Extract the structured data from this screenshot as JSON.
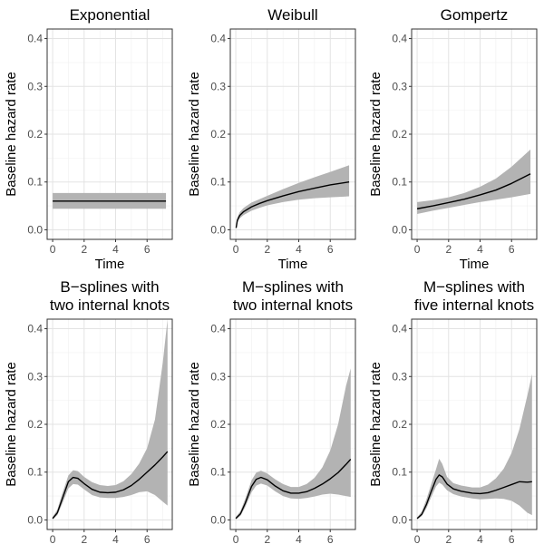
{
  "chart_data": {
    "type": "line",
    "layout": "2x3 facet grid",
    "shared": {
      "xlabel": "Time",
      "ylabel": "Baseline hazard rate",
      "xlim": [
        -0.35,
        7.6
      ],
      "ylim": [
        -0.02,
        0.42
      ],
      "xticks": [
        0,
        2,
        4,
        6
      ],
      "xtick_labels": [
        "0",
        "2",
        "4",
        "6"
      ],
      "yticks": [
        0.0,
        0.1,
        0.2,
        0.3,
        0.4
      ],
      "ytick_labels": [
        "0.0",
        "0.1",
        "0.2",
        "0.3",
        "0.4"
      ],
      "grid": true
    },
    "panels": [
      {
        "title_lines": [
          "Exponential"
        ],
        "x": [
          0,
          1,
          2,
          3,
          4,
          5,
          6,
          7.2
        ],
        "y": [
          0.06,
          0.06,
          0.06,
          0.06,
          0.06,
          0.06,
          0.06,
          0.06
        ],
        "lower": [
          0.044,
          0.044,
          0.044,
          0.044,
          0.044,
          0.044,
          0.044,
          0.044
        ],
        "upper": [
          0.077,
          0.077,
          0.077,
          0.077,
          0.077,
          0.077,
          0.077,
          0.077
        ]
      },
      {
        "title_lines": [
          "Weibull"
        ],
        "x": [
          0.02,
          0.1,
          0.25,
          0.5,
          1,
          1.5,
          2,
          3,
          4,
          5,
          6,
          7.2
        ],
        "y": [
          0.004,
          0.02,
          0.03,
          0.038,
          0.048,
          0.055,
          0.061,
          0.071,
          0.08,
          0.087,
          0.094,
          0.1
        ],
        "lower": [
          0.002,
          0.015,
          0.024,
          0.031,
          0.04,
          0.046,
          0.051,
          0.058,
          0.063,
          0.066,
          0.068,
          0.07
        ],
        "upper": [
          0.006,
          0.026,
          0.037,
          0.046,
          0.057,
          0.064,
          0.071,
          0.085,
          0.098,
          0.11,
          0.121,
          0.135
        ]
      },
      {
        "title_lines": [
          "Gompertz"
        ],
        "x": [
          0,
          1,
          2,
          3,
          4,
          5,
          6,
          7.2
        ],
        "y": [
          0.044,
          0.05,
          0.057,
          0.064,
          0.073,
          0.083,
          0.097,
          0.117
        ],
        "lower": [
          0.033,
          0.04,
          0.046,
          0.052,
          0.058,
          0.063,
          0.068,
          0.075
        ],
        "upper": [
          0.058,
          0.062,
          0.068,
          0.077,
          0.09,
          0.107,
          0.132,
          0.168
        ]
      },
      {
        "title_lines": [
          "B−splines with",
          "two internal knots"
        ],
        "x": [
          0,
          0.3,
          0.6,
          1.0,
          1.3,
          1.6,
          2.0,
          2.5,
          3.0,
          3.5,
          4.0,
          4.5,
          5.0,
          5.5,
          6.0,
          6.5,
          7.0,
          7.3
        ],
        "y": [
          0.003,
          0.015,
          0.043,
          0.08,
          0.089,
          0.087,
          0.076,
          0.064,
          0.058,
          0.057,
          0.058,
          0.063,
          0.072,
          0.085,
          0.1,
          0.115,
          0.132,
          0.143
        ],
        "lower": [
          0.001,
          0.01,
          0.033,
          0.066,
          0.075,
          0.074,
          0.064,
          0.052,
          0.047,
          0.046,
          0.046,
          0.048,
          0.052,
          0.058,
          0.06,
          0.052,
          0.038,
          0.03
        ],
        "upper": [
          0.006,
          0.022,
          0.054,
          0.093,
          0.104,
          0.102,
          0.09,
          0.079,
          0.073,
          0.071,
          0.073,
          0.081,
          0.096,
          0.118,
          0.15,
          0.21,
          0.33,
          0.42
        ]
      },
      {
        "title_lines": [
          "M−splines with",
          "two internal knots"
        ],
        "x": [
          0,
          0.3,
          0.6,
          1.0,
          1.3,
          1.6,
          2.0,
          2.5,
          3.0,
          3.5,
          4.0,
          4.5,
          5.0,
          5.5,
          6.0,
          6.5,
          7.0,
          7.3
        ],
        "y": [
          0.003,
          0.013,
          0.035,
          0.07,
          0.085,
          0.089,
          0.084,
          0.071,
          0.061,
          0.056,
          0.056,
          0.059,
          0.066,
          0.075,
          0.086,
          0.099,
          0.116,
          0.127
        ],
        "lower": [
          0.001,
          0.009,
          0.027,
          0.058,
          0.072,
          0.076,
          0.072,
          0.06,
          0.05,
          0.045,
          0.044,
          0.046,
          0.049,
          0.053,
          0.055,
          0.053,
          0.05,
          0.048
        ],
        "upper": [
          0.006,
          0.019,
          0.044,
          0.083,
          0.099,
          0.103,
          0.097,
          0.085,
          0.075,
          0.069,
          0.069,
          0.075,
          0.088,
          0.11,
          0.145,
          0.2,
          0.28,
          0.317
        ]
      },
      {
        "title_lines": [
          "M−splines with",
          "five internal knots"
        ],
        "x": [
          0,
          0.3,
          0.6,
          0.9,
          1.2,
          1.4,
          1.6,
          1.9,
          2.3,
          2.8,
          3.5,
          4.0,
          4.5,
          5.0,
          5.5,
          6.0,
          6.5,
          7.0,
          7.3
        ],
        "y": [
          0.003,
          0.012,
          0.033,
          0.06,
          0.085,
          0.094,
          0.09,
          0.075,
          0.065,
          0.06,
          0.056,
          0.055,
          0.057,
          0.062,
          0.068,
          0.074,
          0.08,
          0.079,
          0.08
        ],
        "lower": [
          0.001,
          0.008,
          0.025,
          0.048,
          0.07,
          0.078,
          0.074,
          0.062,
          0.054,
          0.049,
          0.045,
          0.043,
          0.044,
          0.045,
          0.044,
          0.04,
          0.03,
          0.015,
          0.01
        ],
        "upper": [
          0.005,
          0.018,
          0.044,
          0.075,
          0.106,
          0.128,
          0.117,
          0.09,
          0.077,
          0.072,
          0.068,
          0.068,
          0.074,
          0.087,
          0.107,
          0.14,
          0.19,
          0.26,
          0.305
        ]
      }
    ]
  }
}
